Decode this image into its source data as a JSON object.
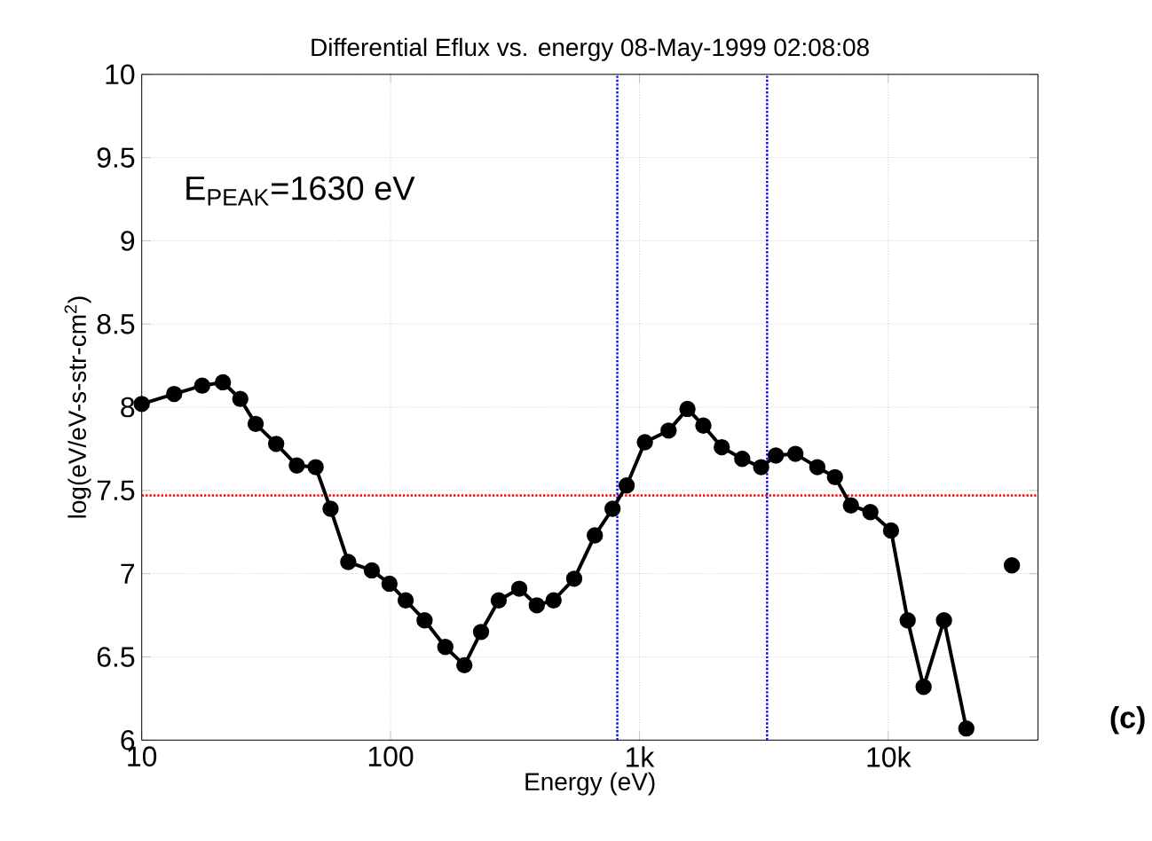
{
  "chart_data": {
    "type": "line",
    "title": "Differential Eflux vs. energy 08-May-1999 02:08:08",
    "xlabel": "Energy (eV)",
    "ylabel": "log(eV/eV-s-str-cm$^{2}$)",
    "log": "x",
    "xlim": [
      10,
      40000
    ],
    "ylim": [
      6,
      10
    ],
    "xticks": [
      10,
      100,
      {
        "value": 1000,
        "label": "1k"
      },
      {
        "value": 10000,
        "label": "10k"
      }
    ],
    "yticks": [
      6,
      6.5,
      7,
      7.5,
      8,
      8.5,
      9,
      9.5,
      10
    ],
    "grid": true,
    "marker": "circle",
    "line_style": "solid",
    "series": [
      {
        "color": "#000000",
        "x": [
          10,
          13.5,
          17.5,
          21.2,
          24.9,
          28.7,
          34.7,
          42.0,
          50.0,
          57.4,
          67.6,
          84.1,
          99,
          115,
          137,
          166,
          198,
          231,
          272,
          329,
          387,
          452,
          547,
          662,
          780,
          889,
          1052,
          1310,
          1560,
          1807,
          2143,
          2590,
          3085,
          3534,
          4236,
          5188,
          6109,
          7080,
          8474,
          10260,
          11970,
          13870,
          16750,
          20600,
          25900,
          31400
        ],
        "values": [
          8.02,
          8.08,
          8.13,
          8.15,
          8.05,
          7.9,
          7.78,
          7.65,
          7.64,
          7.39,
          7.07,
          7.02,
          6.94,
          6.84,
          6.72,
          6.56,
          6.45,
          6.65,
          6.84,
          6.91,
          6.81,
          6.84,
          6.97,
          7.23,
          7.39,
          7.53,
          7.79,
          7.86,
          7.99,
          7.89,
          7.76,
          7.69,
          7.64,
          7.71,
          7.72,
          7.64,
          7.58,
          7.41,
          7.37,
          7.26,
          6.72,
          6.32,
          6.72,
          6.07,
          null,
          7.05
        ]
      }
    ],
    "ref_lines": [
      {
        "axis": "y",
        "value": 7.47,
        "color": "#ff0000",
        "line_style": "dotted"
      },
      {
        "axis": "x",
        "value": 815,
        "color": "#0000ff",
        "line_style": "dotted"
      },
      {
        "axis": "x",
        "value": 3260,
        "color": "#0000ff",
        "line_style": "dotted"
      }
    ],
    "annotations": [
      "E$_{PEAK}$=1630 eV",
      "**(c)**"
    ]
  }
}
